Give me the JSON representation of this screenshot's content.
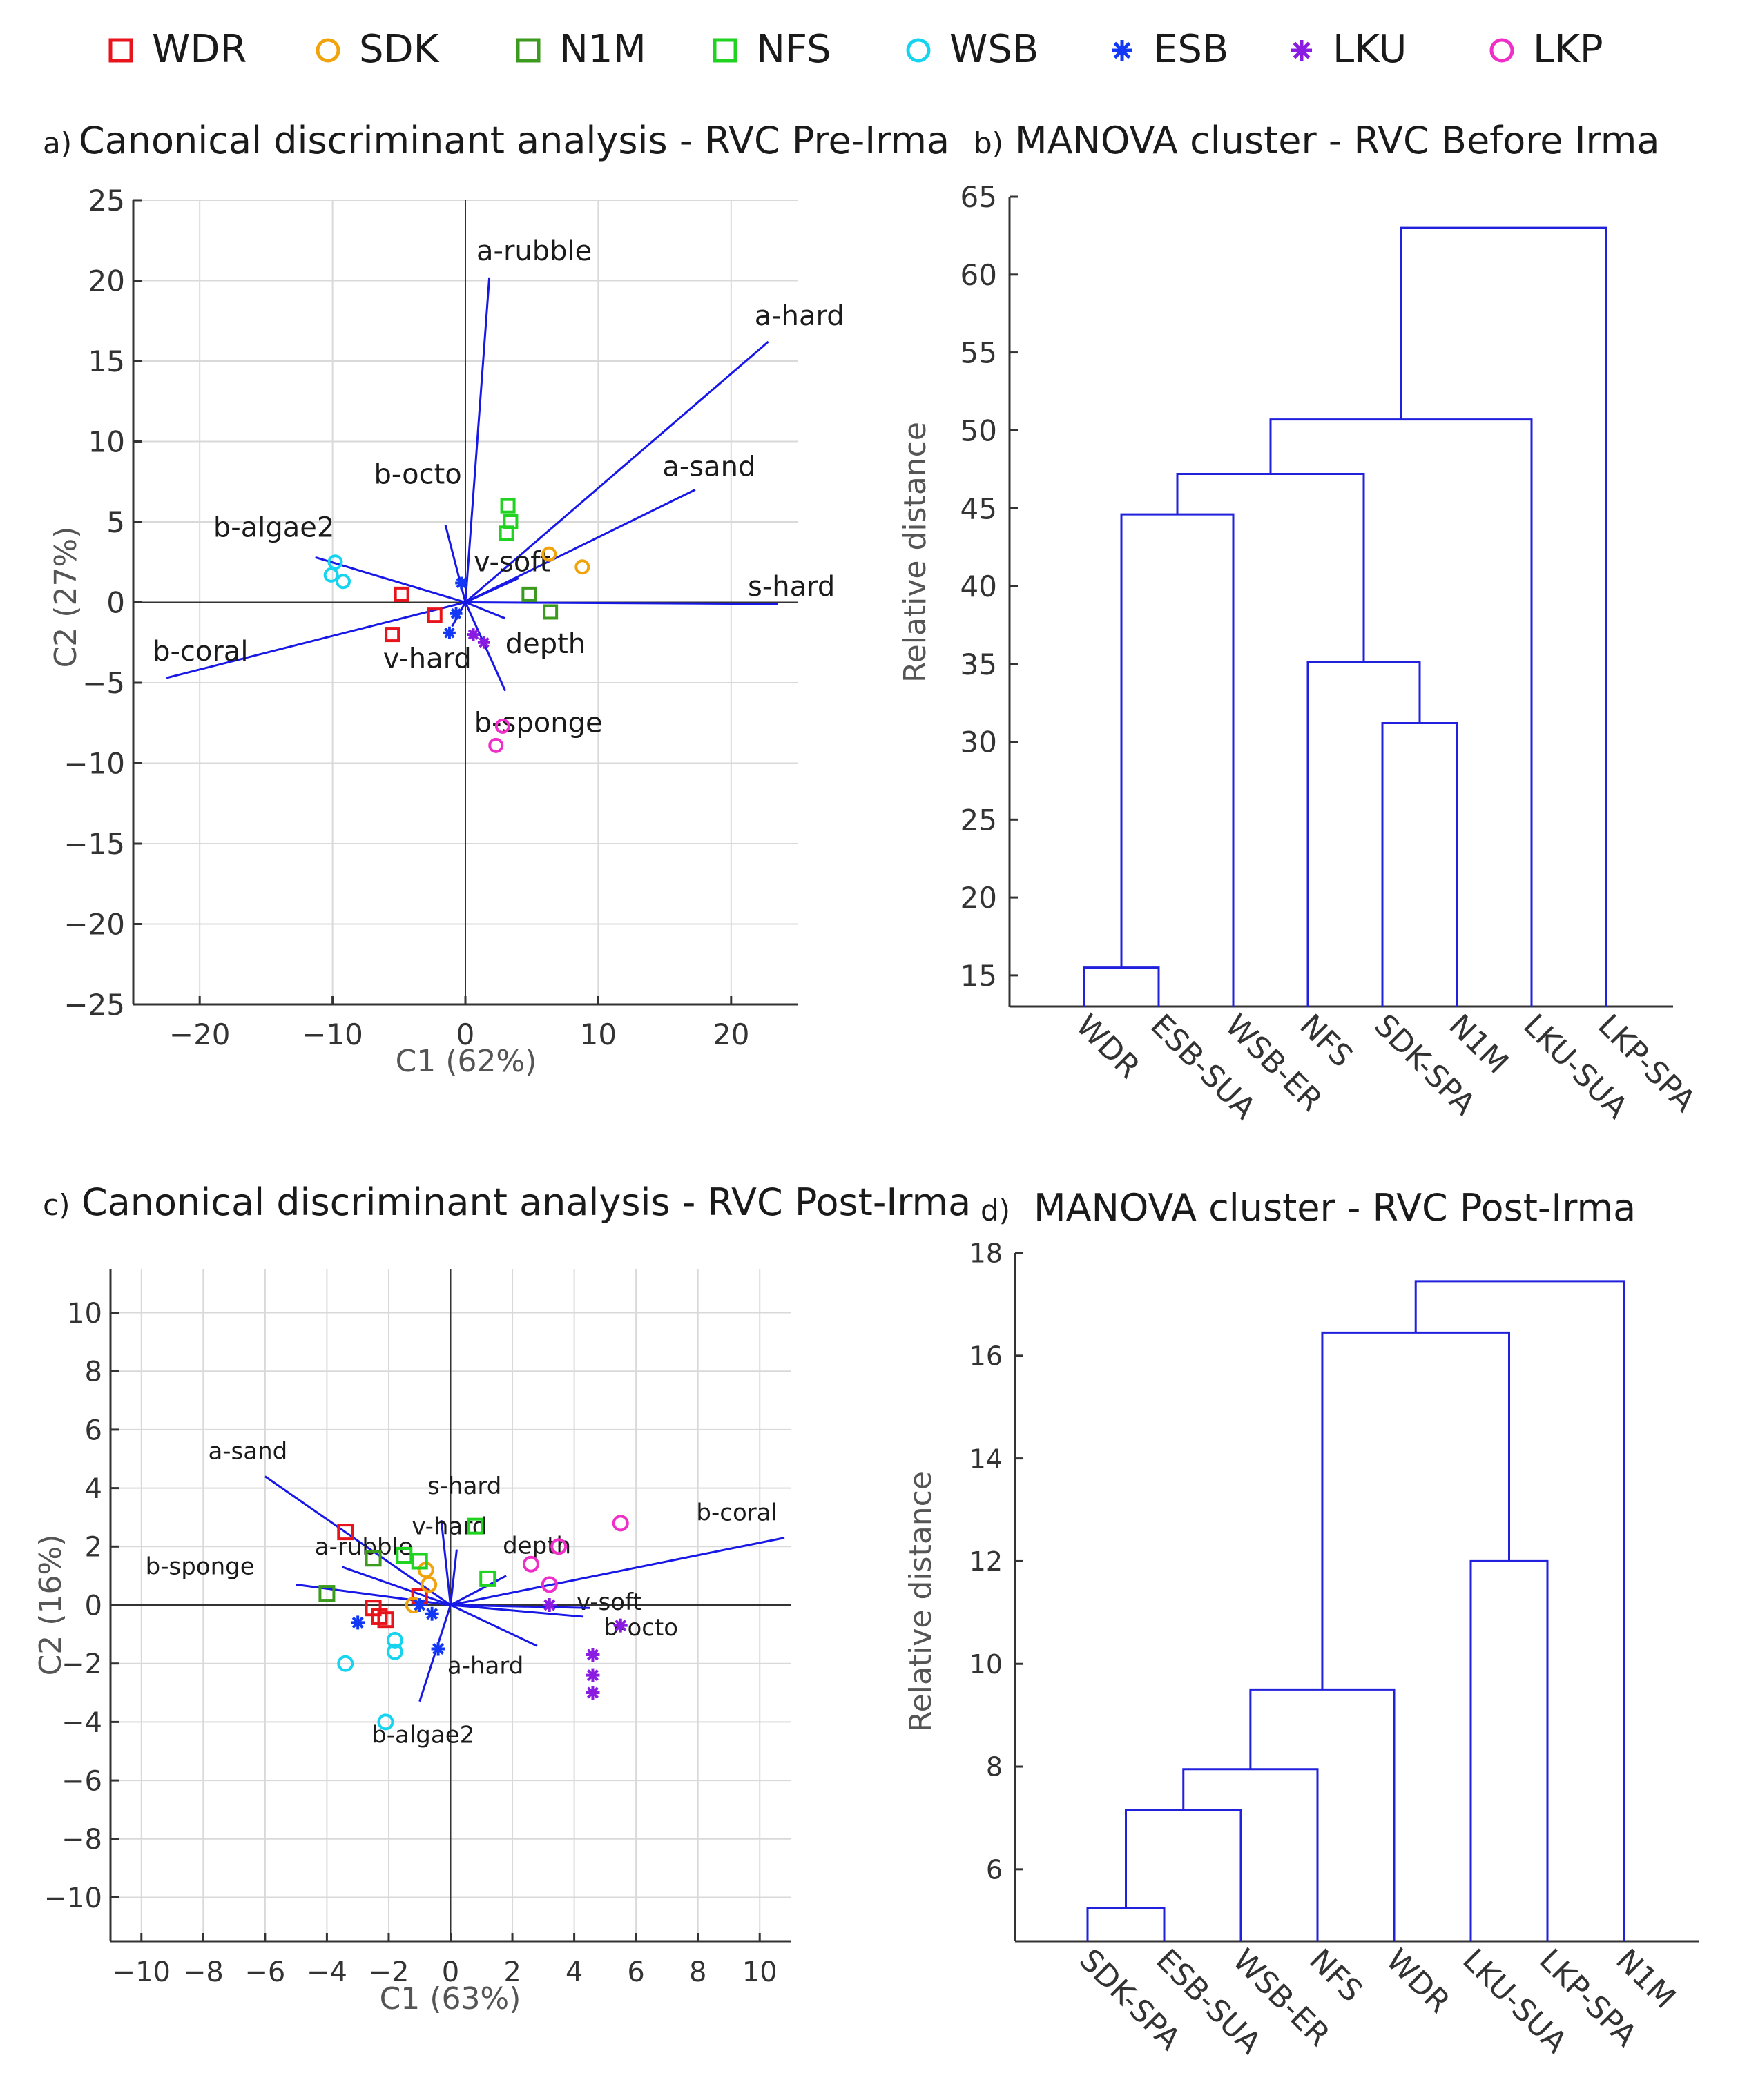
{
  "legend": [
    {
      "name": "WDR",
      "marker": "square",
      "color": "#e8141b"
    },
    {
      "name": "SDK",
      "marker": "circle",
      "color": "#f0a30a"
    },
    {
      "name": "N1M",
      "marker": "square",
      "color": "#3c9a1e"
    },
    {
      "name": "NFS",
      "marker": "square",
      "color": "#21d321"
    },
    {
      "name": "WSB",
      "marker": "circle",
      "color": "#16d4f0"
    },
    {
      "name": "ESB",
      "marker": "asterisk",
      "color": "#1238f5"
    },
    {
      "name": "LKU",
      "marker": "asterisk",
      "color": "#8a1be0"
    },
    {
      "name": "LKP",
      "marker": "circle",
      "color": "#f02ec8"
    }
  ],
  "colors": {
    "vector": "#1717e6",
    "dendrogram": "#2020dd",
    "grid": "#d9d9d9",
    "axis": "#333333"
  },
  "chart_data": [
    {
      "type": "scatter",
      "panel": "a)",
      "title": "Canonical discriminant analysis - RVC Pre-Irma",
      "xlabel": "C1 (62%)",
      "ylabel": "C2 (27%)",
      "xlim": [
        -25,
        25
      ],
      "ylim": [
        -25,
        25
      ],
      "xticks": [
        -20,
        -10,
        0,
        10,
        20
      ],
      "xtick_labels": [
        "−20",
        "−10",
        "0",
        "10",
        "20"
      ],
      "yticks": [
        25,
        20,
        15,
        10,
        5,
        0,
        -5,
        -10,
        -15,
        -20,
        -25
      ],
      "ytick_labels": [
        "25",
        "20",
        "15",
        "10",
        "5",
        "0",
        "−5",
        "−10",
        "−15",
        "−20",
        "−25"
      ],
      "grid": true,
      "vectors": [
        {
          "label": "a-rubble",
          "x": 1.8,
          "y": 20.2
        },
        {
          "label": "a-hard",
          "x": 22.8,
          "y": 16.2
        },
        {
          "label": "a-sand",
          "x": 17.3,
          "y": 7.0
        },
        {
          "label": "s-hard",
          "x": 23.5,
          "y": -0.1
        },
        {
          "label": "b-octo",
          "x": -1.5,
          "y": 4.8
        },
        {
          "label": "b-algae2",
          "x": -11.3,
          "y": 2.8
        },
        {
          "label": "b-coral",
          "x": -22.5,
          "y": -4.7
        },
        {
          "label": "v-soft",
          "x": 4.0,
          "y": 1.5
        },
        {
          "label": "depth",
          "x": 3.0,
          "y": -1.0
        },
        {
          "label": "v-hard",
          "x": -1.0,
          "y": -1.5
        },
        {
          "label": "b-sponge",
          "x": 3.0,
          "y": -5.5
        }
      ],
      "points": [
        {
          "group": "WDR",
          "x": -4.8,
          "y": 0.5
        },
        {
          "group": "WDR",
          "x": -2.3,
          "y": -0.8
        },
        {
          "group": "WDR",
          "x": -5.5,
          "y": -2.0
        },
        {
          "group": "SDK",
          "x": 6.3,
          "y": 3.0
        },
        {
          "group": "SDK",
          "x": 8.8,
          "y": 2.2
        },
        {
          "group": "N1M",
          "x": 4.8,
          "y": 0.5
        },
        {
          "group": "N1M",
          "x": 6.4,
          "y": -0.6
        },
        {
          "group": "NFS",
          "x": 3.2,
          "y": 6.0
        },
        {
          "group": "NFS",
          "x": 3.4,
          "y": 5.0
        },
        {
          "group": "NFS",
          "x": 3.1,
          "y": 4.3
        },
        {
          "group": "WSB",
          "x": -9.8,
          "y": 2.5
        },
        {
          "group": "WSB",
          "x": -10.1,
          "y": 1.7
        },
        {
          "group": "WSB",
          "x": -9.2,
          "y": 1.3
        },
        {
          "group": "ESB",
          "x": -0.3,
          "y": 1.2
        },
        {
          "group": "ESB",
          "x": -0.7,
          "y": -0.7
        },
        {
          "group": "ESB",
          "x": -1.2,
          "y": -1.9
        },
        {
          "group": "LKU",
          "x": 0.6,
          "y": -2.0
        },
        {
          "group": "LKU",
          "x": 1.4,
          "y": -2.5
        },
        {
          "group": "LKP",
          "x": 2.8,
          "y": -7.7
        },
        {
          "group": "LKP",
          "x": 2.3,
          "y": -8.9
        }
      ]
    },
    {
      "type": "dendrogram",
      "panel": "b)",
      "title": "MANOVA cluster - RVC Before Irma",
      "ylabel": "Relative distance",
      "ylim": [
        13,
        65
      ],
      "yticks": [
        15,
        20,
        25,
        30,
        35,
        40,
        45,
        50,
        55,
        60,
        65
      ],
      "leaves": [
        "WDR",
        "ESB-SUA",
        "WSB-ER",
        "NFS",
        "SDK-SPA",
        "N1M",
        "LKU-SUA",
        "LKP-SPA"
      ],
      "merges": [
        {
          "left": "WDR",
          "right": "ESB-SUA",
          "height": 15.5
        },
        {
          "left": "SDK-SPA",
          "right": "N1M",
          "height": 31.2
        },
        {
          "left": "NFS",
          "right": "(SDK-SPA,N1M)",
          "height": 35.1
        },
        {
          "left": "(WDR,ESB-SUA)",
          "right": "WSB-ER",
          "height": 44.6
        },
        {
          "left": "(WDR,ESB-SUA,WSB-ER)",
          "right": "(NFS,SDK-SPA,N1M)",
          "height": 47.2
        },
        {
          "left": "(...)",
          "right": "LKU-SUA",
          "height": 50.7
        },
        {
          "left": "(...)",
          "right": "LKP-SPA",
          "height": 63.0
        }
      ]
    },
    {
      "type": "scatter",
      "panel": "c)",
      "title": "Canonical discriminant analysis - RVC Post-Irma",
      "xlabel": "C1 (63%)",
      "ylabel": "C2 (16%)",
      "xlim": [
        -11,
        11
      ],
      "ylim": [
        -11.5,
        11.5
      ],
      "xticks": [
        -10,
        -8,
        -6,
        -4,
        -2,
        0,
        2,
        4,
        6,
        8,
        10
      ],
      "xtick_labels": [
        "−10",
        "−8",
        "−6",
        "−4",
        "−2",
        "0",
        "2",
        "4",
        "6",
        "8",
        "10"
      ],
      "yticks": [
        10,
        8,
        6,
        4,
        2,
        0,
        -2,
        -4,
        -6,
        -8,
        -10
      ],
      "ytick_labels": [
        "10",
        "8",
        "6",
        "4",
        "2",
        "0",
        "−2",
        "−4",
        "−6",
        "−8",
        "−10"
      ],
      "grid": true,
      "vectors": [
        {
          "label": "a-sand",
          "x": -6.0,
          "y": 4.4
        },
        {
          "label": "a-rubble",
          "x": -3.5,
          "y": 1.3
        },
        {
          "label": "b-sponge",
          "x": -5.0,
          "y": 0.7
        },
        {
          "label": "s-hard",
          "x": -0.3,
          "y": 2.9
        },
        {
          "label": "v-hard",
          "x": 0.2,
          "y": 1.9
        },
        {
          "label": "depth",
          "x": 1.8,
          "y": 1.0
        },
        {
          "label": "b-coral",
          "x": 10.8,
          "y": 2.3
        },
        {
          "label": "v-soft",
          "x": 4.3,
          "y": -0.4
        },
        {
          "label": "a-hard",
          "x": 2.8,
          "y": -1.4
        },
        {
          "label": "b-octo",
          "x": 4.5,
          "y": -0.1
        },
        {
          "label": "b-algae2",
          "x": -1.0,
          "y": -3.3
        }
      ],
      "points": [
        {
          "group": "WDR",
          "x": -3.4,
          "y": 2.5
        },
        {
          "group": "WDR",
          "x": -2.5,
          "y": -0.1
        },
        {
          "group": "WDR",
          "x": -2.3,
          "y": -0.4
        },
        {
          "group": "WDR",
          "x": -2.1,
          "y": -0.5
        },
        {
          "group": "WDR",
          "x": -1.0,
          "y": 0.3
        },
        {
          "group": "SDK",
          "x": -0.8,
          "y": 1.2
        },
        {
          "group": "SDK",
          "x": -1.2,
          "y": 0.0
        },
        {
          "group": "SDK",
          "x": -0.7,
          "y": 0.7
        },
        {
          "group": "N1M",
          "x": -2.5,
          "y": 1.6
        },
        {
          "group": "N1M",
          "x": -4.0,
          "y": 0.4
        },
        {
          "group": "NFS",
          "x": -1.5,
          "y": 1.7
        },
        {
          "group": "NFS",
          "x": -1.0,
          "y": 1.5
        },
        {
          "group": "NFS",
          "x": 0.8,
          "y": 2.7
        },
        {
          "group": "NFS",
          "x": 1.2,
          "y": 0.9
        },
        {
          "group": "WSB",
          "x": -3.4,
          "y": -2.0
        },
        {
          "group": "WSB",
          "x": -1.8,
          "y": -1.2
        },
        {
          "group": "WSB",
          "x": -1.8,
          "y": -1.6
        },
        {
          "group": "WSB",
          "x": -2.1,
          "y": -4.0
        },
        {
          "group": "ESB",
          "x": -3.0,
          "y": -0.6
        },
        {
          "group": "ESB",
          "x": -0.6,
          "y": -0.3
        },
        {
          "group": "ESB",
          "x": -0.4,
          "y": -1.5
        },
        {
          "group": "ESB",
          "x": -1.0,
          "y": 0.0
        },
        {
          "group": "LKU",
          "x": 3.2,
          "y": 0.0
        },
        {
          "group": "LKU",
          "x": 4.6,
          "y": -1.7
        },
        {
          "group": "LKU",
          "x": 4.6,
          "y": -2.4
        },
        {
          "group": "LKU",
          "x": 4.6,
          "y": -3.0
        },
        {
          "group": "LKU",
          "x": 5.5,
          "y": -0.7
        },
        {
          "group": "LKP",
          "x": 2.6,
          "y": 1.4
        },
        {
          "group": "LKP",
          "x": 3.5,
          "y": 2.0
        },
        {
          "group": "LKP",
          "x": 3.2,
          "y": 0.7
        },
        {
          "group": "LKP",
          "x": 5.5,
          "y": 2.8
        }
      ]
    },
    {
      "type": "dendrogram",
      "panel": "d)",
      "title": "MANOVA cluster - RVC Post-Irma",
      "ylabel": "Relative distance",
      "ylim": [
        4.6,
        18
      ],
      "yticks": [
        6,
        8,
        10,
        12,
        14,
        16,
        18
      ],
      "leaves": [
        "SDK-SPA",
        "ESB-SUA",
        "WSB-ER",
        "NFS",
        "WDR",
        "LKU-SUA",
        "LKP-SPA",
        "N1M"
      ],
      "merges": [
        {
          "left": "SDK-SPA",
          "right": "ESB-SUA",
          "height": 5.25
        },
        {
          "left": "(SDK-SPA,ESB-SUA)",
          "right": "WSB-ER",
          "height": 7.15
        },
        {
          "left": "(...)",
          "right": "NFS",
          "height": 7.95
        },
        {
          "left": "(...)",
          "right": "WDR",
          "height": 9.5
        },
        {
          "left": "LKU-SUA",
          "right": "LKP-SPA",
          "height": 12.0
        },
        {
          "left": "(...)",
          "right": "(LKU-SUA,LKP-SPA)",
          "height": 16.45
        },
        {
          "left": "(...)",
          "right": "N1M",
          "height": 17.45
        }
      ]
    }
  ]
}
